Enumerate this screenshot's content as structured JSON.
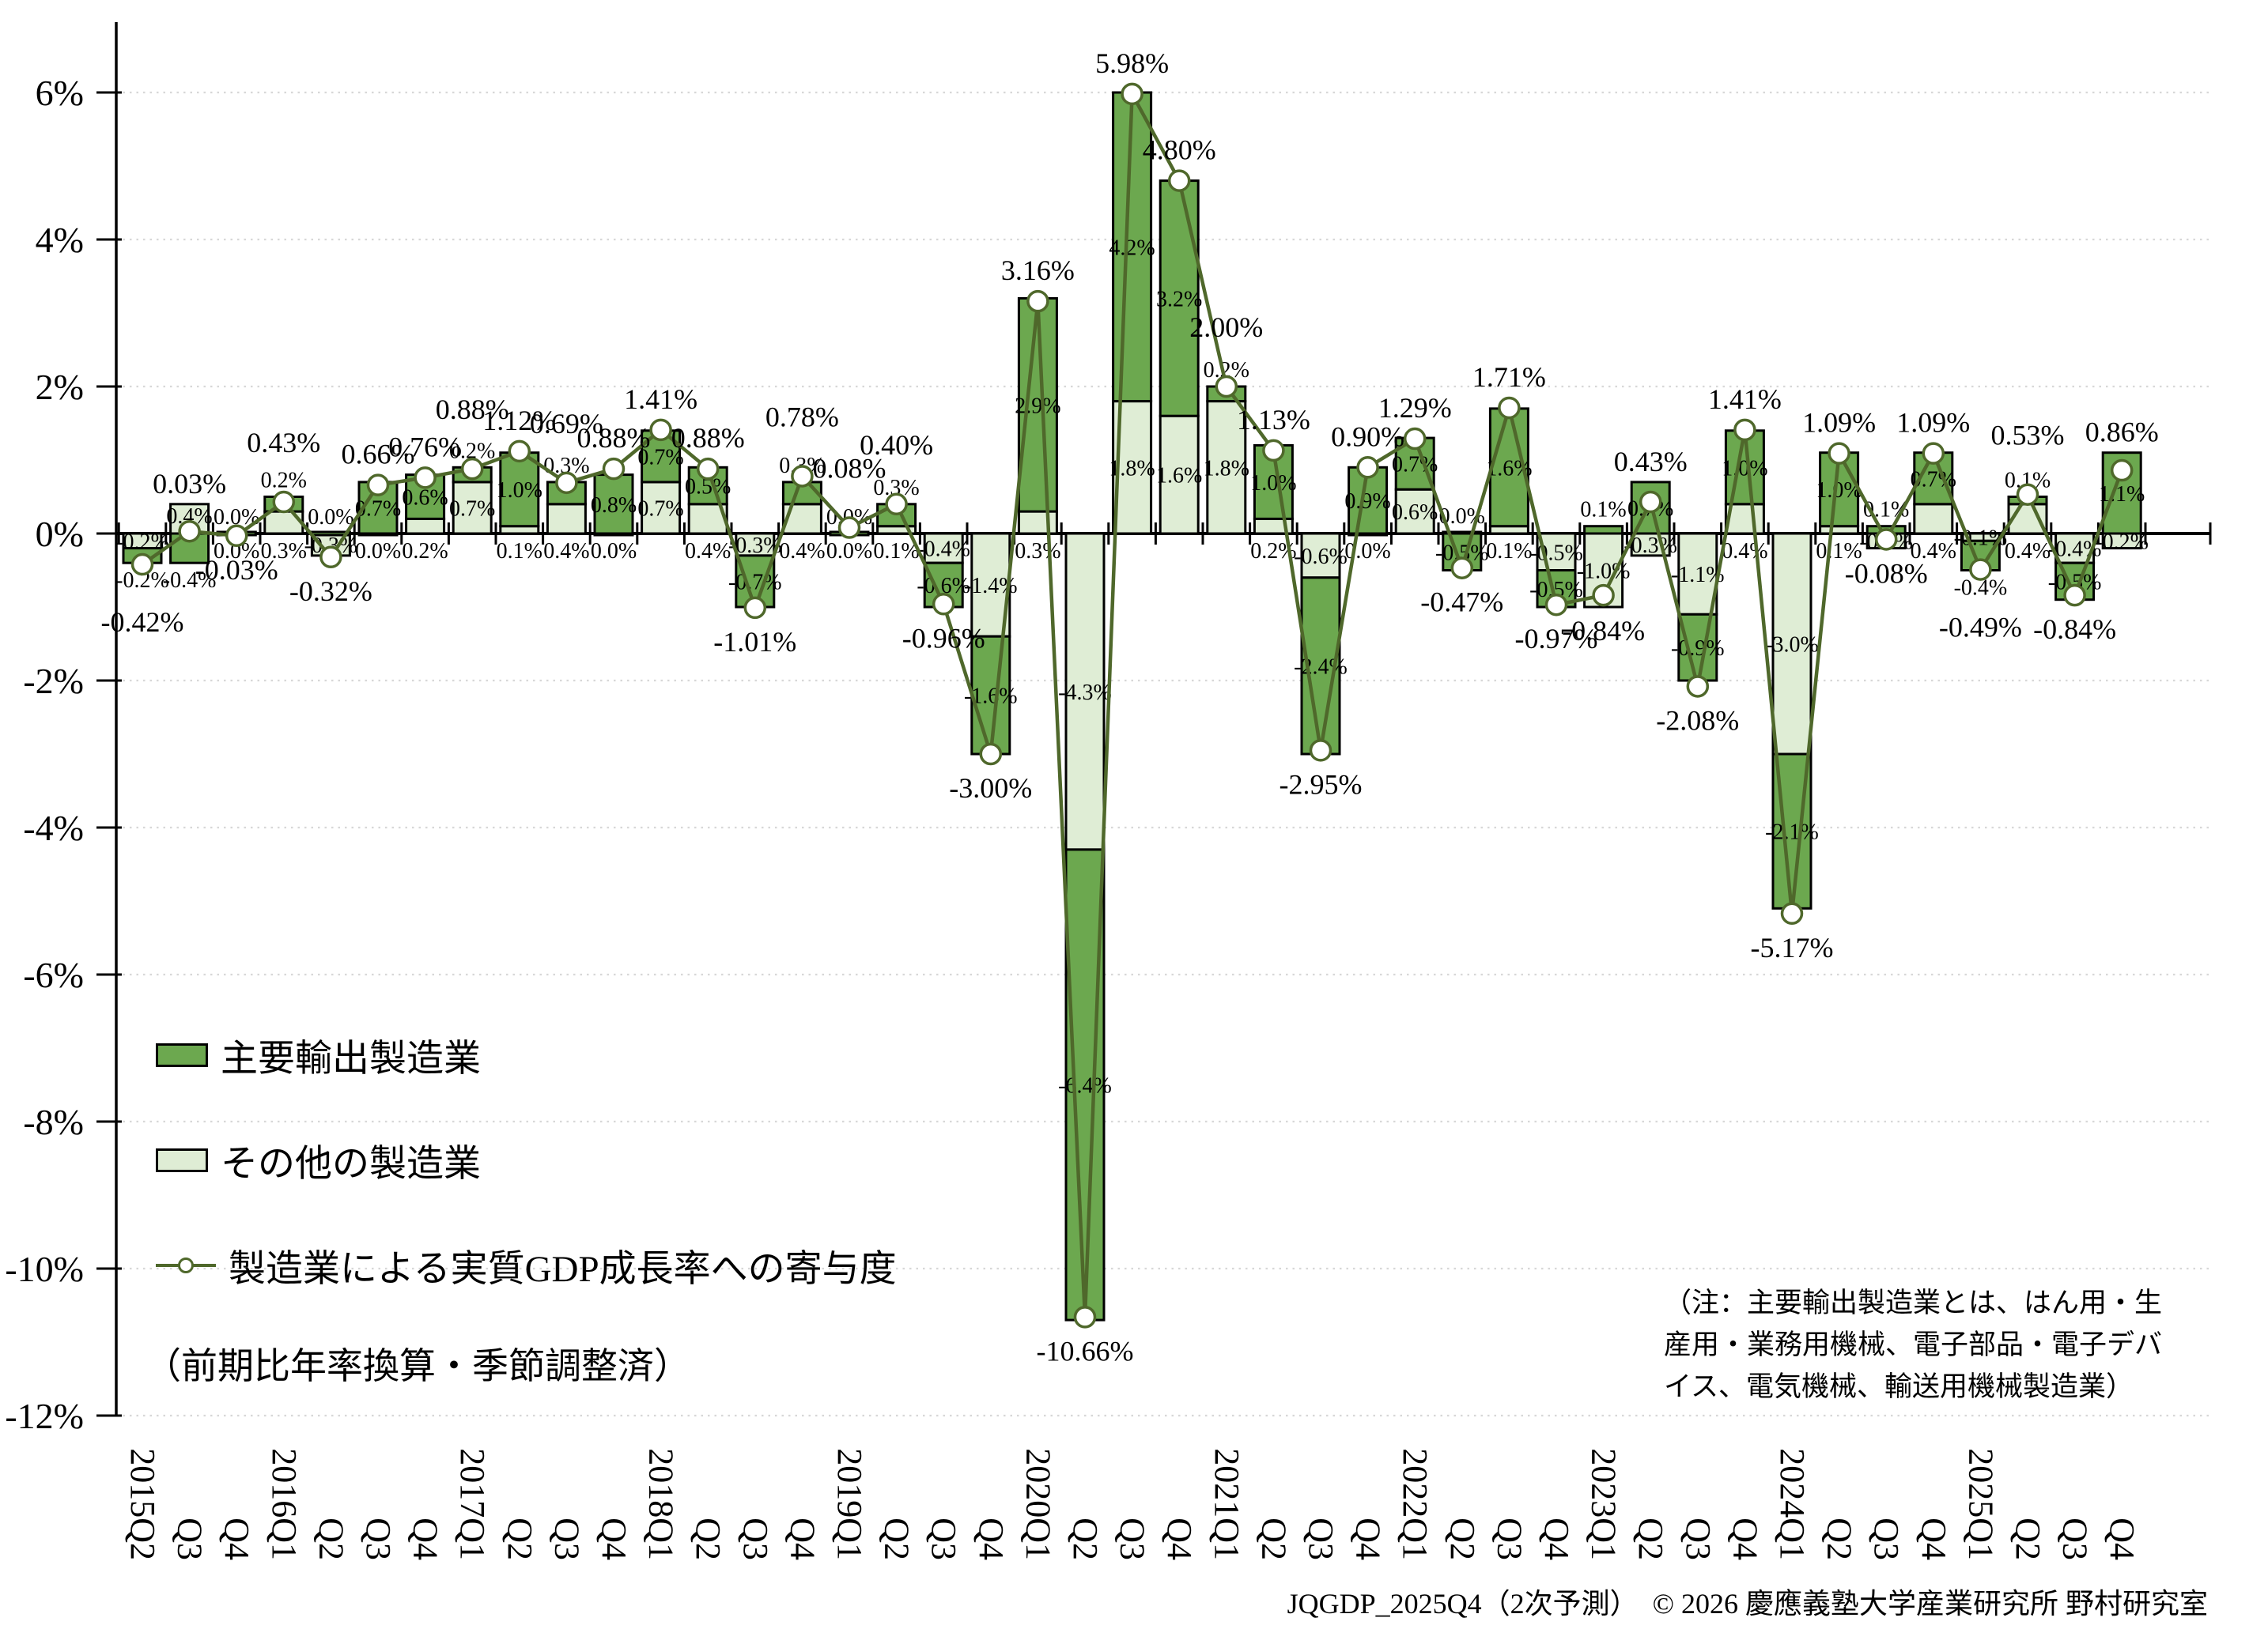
{
  "chart_data": {
    "type": "bar",
    "stacked": true,
    "categories": [
      "2015Q2",
      "Q3",
      "Q4",
      "2016Q1",
      "Q2",
      "Q3",
      "Q4",
      "2017Q1",
      "Q2",
      "Q3",
      "Q4",
      "2018Q1",
      "Q2",
      "Q3",
      "Q4",
      "2019Q1",
      "Q2",
      "Q3",
      "Q4",
      "2020Q1",
      "Q2",
      "Q3",
      "Q4",
      "2021Q1",
      "Q2",
      "Q3",
      "Q4",
      "2022Q1",
      "Q2",
      "Q3",
      "Q4",
      "2023Q1",
      "Q2",
      "Q3",
      "Q4",
      "2024Q1",
      "Q2",
      "Q3",
      "Q4",
      "2025Q1",
      "Q2",
      "Q3",
      "Q4"
    ],
    "series": [
      {
        "name": "主要輸出製造業",
        "color": "#6CA84F",
        "values": [
          -0.2,
          -0.4,
          0.0,
          0.2,
          0.0,
          0.7,
          0.6,
          0.2,
          1.0,
          0.3,
          0.8,
          0.7,
          0.5,
          -0.7,
          0.3,
          0.0,
          0.3,
          -0.6,
          -1.6,
          2.9,
          -6.4,
          4.2,
          3.2,
          0.2,
          1.0,
          -2.4,
          0.9,
          0.7,
          -0.5,
          1.6,
          -0.5,
          0.1,
          0.7,
          -0.9,
          1.0,
          -2.1,
          1.0,
          0.1,
          0.7,
          -0.4,
          0.1,
          -0.5,
          1.1
        ]
      },
      {
        "name": "その他の製造業",
        "color": "#DFEDD5",
        "values": [
          -0.2,
          0.4,
          0.0,
          0.3,
          -0.3,
          0.0,
          0.2,
          0.7,
          0.1,
          0.4,
          0.0,
          0.7,
          0.4,
          -0.3,
          0.4,
          0.0,
          0.1,
          -0.4,
          -1.4,
          0.3,
          -4.3,
          1.8,
          1.6,
          1.8,
          0.2,
          -0.6,
          0.0,
          0.6,
          0.0,
          0.1,
          -0.5,
          -1.0,
          -0.3,
          -1.1,
          0.4,
          -3.0,
          0.1,
          -0.2,
          0.4,
          -0.1,
          0.4,
          -0.4,
          -0.2
        ]
      }
    ],
    "line_series": {
      "name": "製造業による実質GDP成長率への寄与度",
      "color": "#4F682B",
      "marker": "open-circle",
      "values": [
        -0.42,
        0.03,
        -0.03,
        0.43,
        -0.32,
        0.66,
        0.76,
        0.88,
        1.12,
        0.69,
        0.88,
        1.41,
        0.88,
        -1.01,
        0.78,
        0.08,
        0.4,
        -0.96,
        -3.0,
        3.16,
        -10.66,
        5.98,
        4.8,
        2.0,
        1.13,
        -2.95,
        0.9,
        1.29,
        -0.47,
        1.71,
        -0.97,
        -0.84,
        0.43,
        -2.08,
        1.41,
        -5.17,
        1.09,
        -0.08,
        1.09,
        -0.49,
        0.53,
        -0.84,
        0.86
      ]
    },
    "ylim": [
      -12,
      6
    ],
    "ytick_step": 2,
    "ytick_labels": [
      "6%",
      "4%",
      "2%",
      "0%",
      "-2%",
      "-4%",
      "-6%",
      "-8%",
      "-10%",
      "-12%"
    ],
    "total_label_format": "0.00%",
    "segment_label_format": "0.0%",
    "grid": "dotted-horizontal",
    "legend_position": "inside-left"
  },
  "notes": {
    "left_note": "（前期比年率換算・季節調整済）",
    "right_note_lines": [
      "（注：主要輸出製造業とは、はん用・生",
      "産用・業務用機械、電子部品・電子デバ",
      "イス、電気機械、輸送用機械製造業）"
    ]
  },
  "footer": {
    "text": "JQGDP_2025Q4（2次予測）　© 2026 慶應義塾大学産業研究所 野村研究室"
  }
}
